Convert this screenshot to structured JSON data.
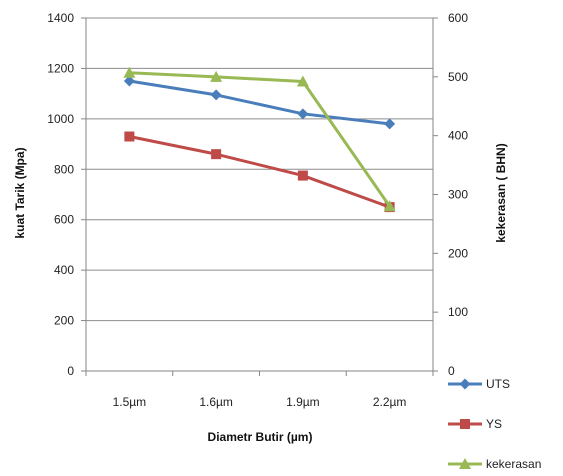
{
  "chart_data": {
    "type": "line",
    "categories": [
      "1.5µm",
      "1.6µm",
      "1.9µm",
      "2.2µm"
    ],
    "xlabel": "Diametr Butir (µm)",
    "ylabel_left": "kuat Tarik (Mpa)",
    "ylabel_right": "kekerasan ( BHN)",
    "ylim_left": [
      0,
      1400
    ],
    "ylim_right": [
      0,
      600
    ],
    "yticks_left": [
      "0",
      "200",
      "400",
      "600",
      "800",
      "1000",
      "1200",
      "1400"
    ],
    "yticks_right": [
      "0",
      "100",
      "200",
      "300",
      "400",
      "500",
      "600"
    ],
    "grid": true,
    "legend_position": "bottom-right",
    "series": [
      {
        "name": "UTS",
        "axis": "left",
        "marker": "diamond",
        "color": "#4a7ebb",
        "values": [
          1150,
          1095,
          1020,
          980
        ]
      },
      {
        "name": "YS",
        "axis": "left",
        "marker": "square",
        "color": "#be4b48",
        "values": [
          930,
          860,
          775,
          650
        ]
      },
      {
        "name": "kekerasan",
        "axis": "right",
        "marker": "triangle",
        "color": "#98b954",
        "values": [
          507,
          500,
          492,
          280
        ]
      }
    ]
  }
}
